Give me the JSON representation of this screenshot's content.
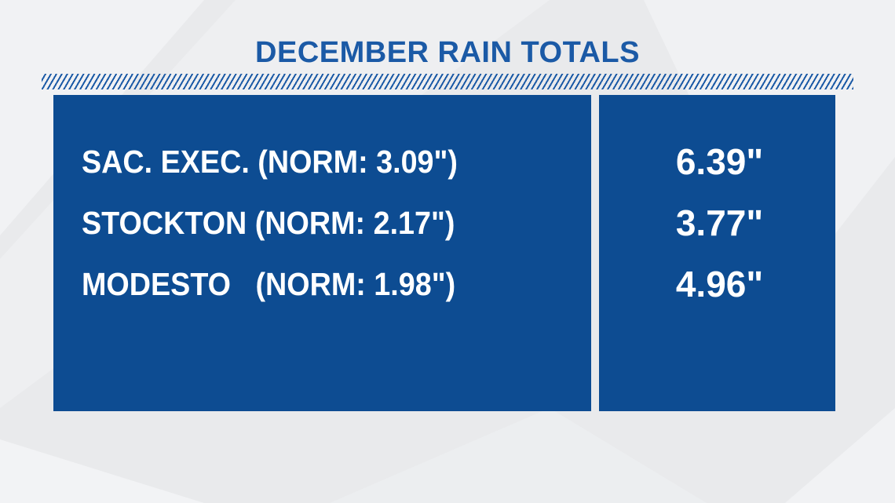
{
  "title": "DECEMBER RAIN TOTALS",
  "colors": {
    "accent": "#1b5aa6",
    "panel": "#0d4c92",
    "background": "#e9eaec",
    "text": "#ffffff"
  },
  "rows": [
    {
      "label": "SAC. EXEC. (NORM: 3.09\")",
      "value": "6.39\""
    },
    {
      "label": "STOCKTON (NORM: 2.17\")",
      "value": "3.77\""
    },
    {
      "label": "MODESTO   (NORM: 1.98\")",
      "value": "4.96\""
    }
  ]
}
